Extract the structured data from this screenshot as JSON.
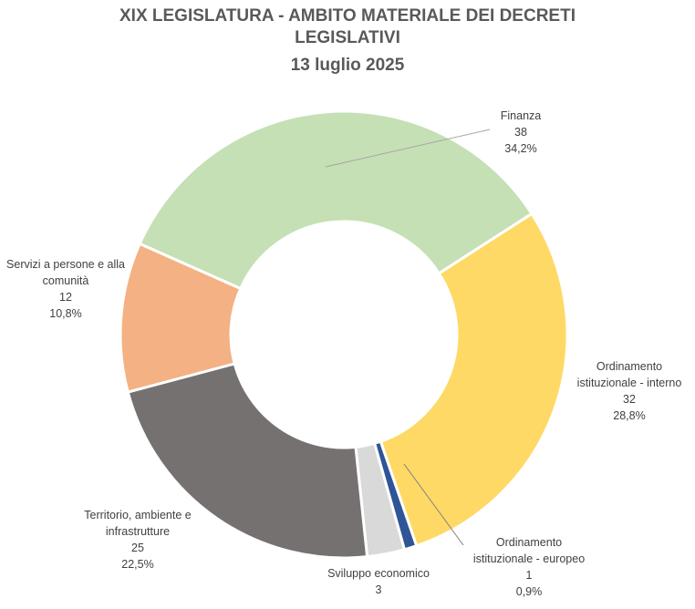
{
  "chart_data": {
    "type": "pie",
    "donut": true,
    "title": "XIX LEGISLATURA - AMBITO MATERIALE DEI DECRETI LEGISLATIVI",
    "subtitle": "13 luglio 2025",
    "slices": [
      {
        "label": "Finanza",
        "value": 38,
        "percent": "34,2%",
        "color": "#c5e0b4"
      },
      {
        "label": "Ordinamento istituzionale - interno",
        "value": 32,
        "percent": "28,8%",
        "color": "#ffd966"
      },
      {
        "label": "Ordinamento istituzionale -  europeo",
        "value": 1,
        "percent": "0,9%",
        "color": "#2f5597"
      },
      {
        "label": "Sviluppo economico",
        "value": 3,
        "percent": "",
        "color": "#d9d9d9"
      },
      {
        "label": "Territorio, ambiente e infrastrutture",
        "value": 25,
        "percent": "22,5%",
        "color": "#767171"
      },
      {
        "label": "Servizi a persone e alla comunità",
        "value": 12,
        "percent": "10,8%",
        "color": "#f4b183"
      }
    ]
  },
  "labels": {
    "finanza": {
      "line1": "Finanza",
      "value": "38",
      "percent": "34,2%"
    },
    "interno": {
      "line1": "Ordinamento",
      "line2": "istituzionale - interno",
      "value": "32",
      "percent": "28,8%"
    },
    "europeo": {
      "line1": "Ordinamento",
      "line2": "istituzionale -  europeo",
      "value": "1",
      "percent": "0,9%"
    },
    "sviluppo": {
      "line1": "Sviluppo economico",
      "value": "3"
    },
    "territorio": {
      "line1": "Territorio, ambiente e",
      "line2": "infrastrutture",
      "value": "25",
      "percent": "22,5%"
    },
    "servizi": {
      "line1": "Servizi a persone e alla",
      "line2": "comunità",
      "value": "12",
      "percent": "10,8%"
    }
  },
  "title_line1": "XIX LEGISLATURA - AMBITO MATERIALE DEI DECRETI",
  "title_line2": "LEGISLATIVI",
  "title_line3": "13 luglio 2025"
}
